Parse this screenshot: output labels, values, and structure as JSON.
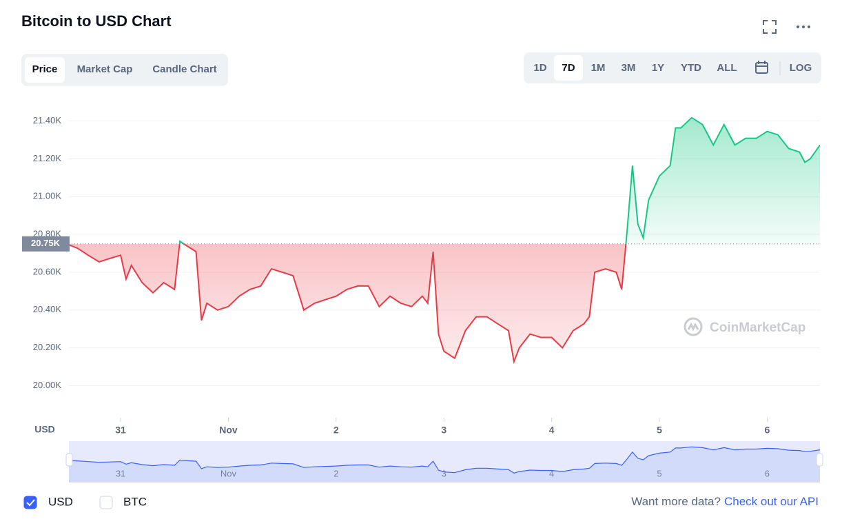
{
  "header": {
    "title": "Bitcoin to USD Chart"
  },
  "tabs": {
    "items": [
      "Price",
      "Market Cap",
      "Candle Chart"
    ],
    "active": "Price"
  },
  "ranges": {
    "items": [
      "1D",
      "7D",
      "1M",
      "3M",
      "1Y",
      "YTD",
      "ALL"
    ],
    "active": "7D",
    "scale_button": "LOG"
  },
  "chart_data": {
    "type": "line",
    "title": "Bitcoin to USD Chart",
    "y_unit_label": "USD",
    "watermark": "CoinMarketCap",
    "color_up": "#16c784",
    "color_down": "#ea3943",
    "grid": true,
    "reference": {
      "value": 20750,
      "label": "20.75K"
    },
    "xlim": [
      -0.48,
      6.49
    ],
    "xticks": [
      {
        "value": 0,
        "label": "31"
      },
      {
        "value": 1,
        "label": "Nov"
      },
      2,
      3,
      4,
      5,
      6
    ],
    "ylim": [
      19830,
      21530
    ],
    "yticks": [
      {
        "value": 20000,
        "label": "20.00K"
      },
      {
        "value": 20200,
        "label": "20.20K"
      },
      {
        "value": 20400,
        "label": "20.40K"
      },
      {
        "value": 20600,
        "label": "20.60K"
      },
      {
        "value": 20800,
        "label": "20.80K"
      },
      {
        "value": 21000,
        "label": "21.00K"
      },
      {
        "value": 21200,
        "label": "21.20K"
      },
      {
        "value": 21400,
        "label": "21.40K"
      }
    ],
    "x": [
      -0.48,
      -0.4,
      -0.3,
      -0.2,
      -0.1,
      0,
      0.05,
      0.1,
      0.2,
      0.3,
      0.4,
      0.5,
      0.55,
      0.6,
      0.7,
      0.75,
      0.8,
      0.9,
      1.0,
      1.1,
      1.2,
      1.3,
      1.4,
      1.5,
      1.6,
      1.7,
      1.8,
      1.9,
      2.0,
      2.1,
      2.2,
      2.3,
      2.4,
      2.5,
      2.6,
      2.7,
      2.8,
      2.85,
      2.9,
      2.95,
      3.0,
      3.1,
      3.2,
      3.3,
      3.4,
      3.5,
      3.6,
      3.65,
      3.7,
      3.8,
      3.9,
      4.0,
      4.1,
      4.2,
      4.3,
      4.35,
      4.4,
      4.5,
      4.6,
      4.65,
      4.7,
      4.75,
      4.8,
      4.85,
      4.9,
      5.0,
      5.1,
      5.15,
      5.2,
      5.3,
      5.4,
      5.5,
      5.6,
      5.7,
      5.8,
      5.9,
      6.0,
      6.1,
      6.2,
      6.3,
      6.35,
      6.4,
      6.49
    ],
    "series": [
      {
        "values": [
          20745,
          20727,
          20690,
          20655,
          20673,
          20690,
          20564,
          20636,
          20545,
          20491,
          20545,
          20509,
          20764,
          20745,
          20709,
          20345,
          20436,
          20400,
          20418,
          20473,
          20509,
          20527,
          20618,
          20600,
          20582,
          20400,
          20436,
          20455,
          20473,
          20509,
          20527,
          20527,
          20418,
          20473,
          20436,
          20418,
          20473,
          20436,
          20709,
          20273,
          20182,
          20145,
          20291,
          20364,
          20364,
          20327,
          20291,
          20127,
          20200,
          20273,
          20255,
          20255,
          20200,
          20291,
          20327,
          20364,
          20600,
          20618,
          20600,
          20509,
          20818,
          21164,
          20855,
          20782,
          20982,
          21109,
          21164,
          21364,
          21364,
          21418,
          21382,
          21273,
          21382,
          21273,
          21309,
          21309,
          21345,
          21327,
          21255,
          21236,
          21182,
          21200,
          21273
        ]
      }
    ]
  },
  "footer": {
    "currencies": [
      {
        "label": "USD",
        "checked": true
      },
      {
        "label": "BTC",
        "checked": false
      }
    ],
    "prompt": "Want more data?",
    "link": "Check out our API"
  }
}
